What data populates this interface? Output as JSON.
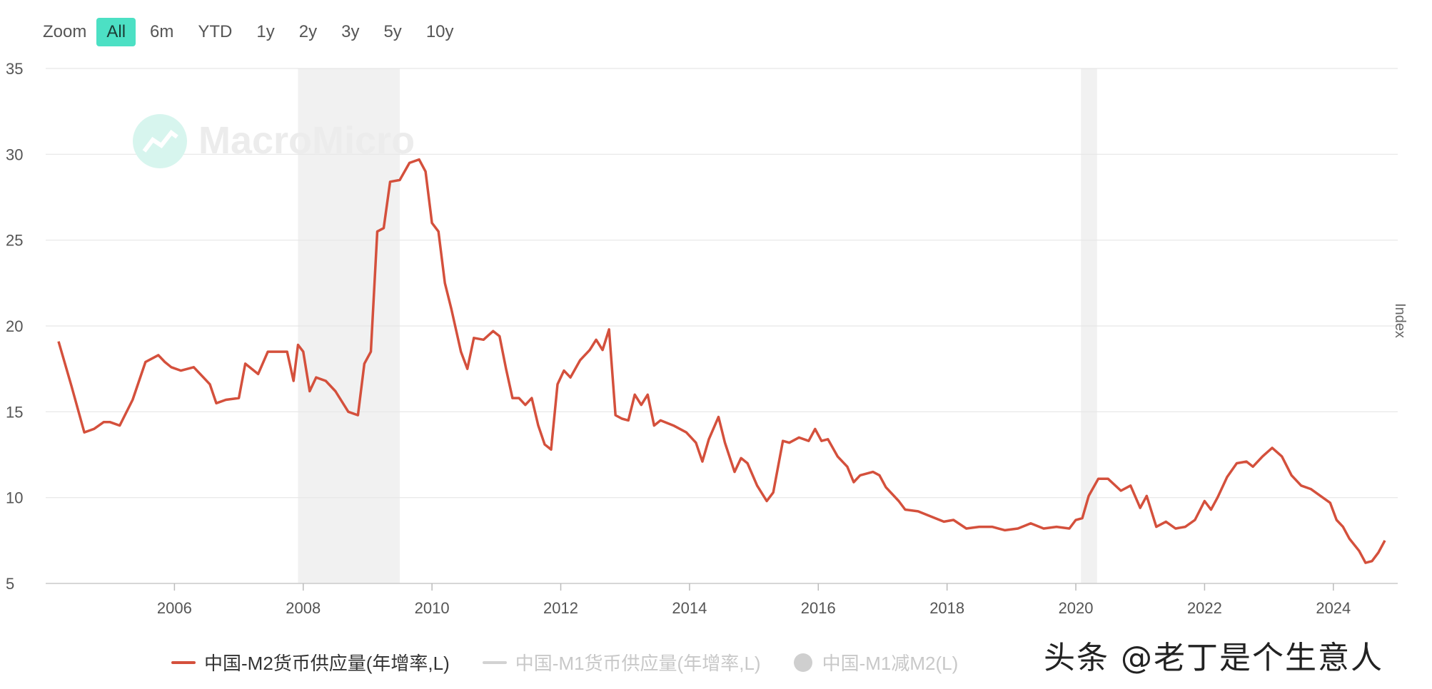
{
  "toolbar": {
    "zoom_label": "Zoom",
    "buttons": [
      "All",
      "6m",
      "YTD",
      "1y",
      "2y",
      "3y",
      "5y",
      "10y"
    ],
    "active": "All"
  },
  "watermark": "MacroMicro",
  "footer_watermark": "头条 @老丁是个生意人",
  "yaxis_title": "Index",
  "legend": {
    "m2": "中国-M2货币供应量(年增率,L)",
    "m1": "中国-M1货币供应量(年增率,L)",
    "m1m2": "中国-M1减M2(L)"
  },
  "colors": {
    "line": "#d4503c",
    "accent": "#4ce0c4",
    "shade": "#f1f1f1"
  },
  "chart_data": {
    "type": "line",
    "ylim": [
      5,
      35
    ],
    "xlim": [
      2004.0,
      2025.0
    ],
    "yticks": [
      5,
      10,
      15,
      20,
      25,
      30,
      35
    ],
    "xticks": [
      2006,
      2008,
      2010,
      2012,
      2014,
      2016,
      2018,
      2020,
      2022,
      2024
    ],
    "grid": true,
    "legend_position": "bottom",
    "shaded_periods": [
      [
        2007.92,
        2009.5
      ],
      [
        2020.08,
        2020.33
      ]
    ],
    "series": [
      {
        "name": "中国-M2货币供应量(年增率,L)",
        "x": [
          2004.2,
          2004.4,
          2004.6,
          2004.75,
          2004.9,
          2005.0,
          2005.15,
          2005.35,
          2005.55,
          2005.75,
          2005.85,
          2005.95,
          2006.1,
          2006.3,
          2006.45,
          2006.55,
          2006.65,
          2006.8,
          2007.0,
          2007.1,
          2007.3,
          2007.45,
          2007.6,
          2007.75,
          2007.85,
          2007.92,
          2008.0,
          2008.1,
          2008.2,
          2008.35,
          2008.5,
          2008.7,
          2008.85,
          2008.95,
          2009.05,
          2009.15,
          2009.25,
          2009.35,
          2009.5,
          2009.65,
          2009.8,
          2009.9,
          2010.0,
          2010.1,
          2010.2,
          2010.3,
          2010.45,
          2010.55,
          2010.65,
          2010.8,
          2010.95,
          2011.05,
          2011.15,
          2011.25,
          2011.35,
          2011.45,
          2011.55,
          2011.65,
          2011.75,
          2011.85,
          2011.95,
          2012.05,
          2012.15,
          2012.3,
          2012.45,
          2012.55,
          2012.65,
          2012.75,
          2012.85,
          2012.95,
          2013.05,
          2013.15,
          2013.25,
          2013.35,
          2013.45,
          2013.55,
          2013.75,
          2013.95,
          2014.1,
          2014.2,
          2014.3,
          2014.45,
          2014.55,
          2014.7,
          2014.8,
          2014.9,
          2015.05,
          2015.2,
          2015.3,
          2015.45,
          2015.55,
          2015.7,
          2015.85,
          2015.95,
          2016.05,
          2016.15,
          2016.3,
          2016.45,
          2016.55,
          2016.65,
          2016.85,
          2016.95,
          2017.05,
          2017.25,
          2017.35,
          2017.55,
          2017.75,
          2017.95,
          2018.1,
          2018.3,
          2018.5,
          2018.7,
          2018.9,
          2019.1,
          2019.3,
          2019.5,
          2019.7,
          2019.9,
          2020.0,
          2020.1,
          2020.2,
          2020.35,
          2020.5,
          2020.7,
          2020.85,
          2021.0,
          2021.1,
          2021.25,
          2021.4,
          2021.55,
          2021.7,
          2021.85,
          2022.0,
          2022.1,
          2022.2,
          2022.35,
          2022.5,
          2022.65,
          2022.75,
          2022.9,
          2023.05,
          2023.2,
          2023.35,
          2023.5,
          2023.65,
          2023.8,
          2023.95,
          2024.05,
          2024.15,
          2024.25,
          2024.4,
          2024.5,
          2024.6,
          2024.7,
          2024.8
        ],
        "values": [
          19.1,
          16.5,
          13.8,
          14.0,
          14.4,
          14.4,
          14.2,
          15.7,
          17.9,
          18.3,
          17.9,
          17.6,
          17.4,
          17.6,
          17.0,
          16.6,
          15.5,
          15.7,
          15.8,
          17.8,
          17.2,
          18.5,
          18.5,
          18.5,
          16.8,
          18.9,
          18.5,
          16.2,
          17.0,
          16.8,
          16.2,
          15.0,
          14.8,
          17.8,
          18.5,
          25.5,
          25.7,
          28.4,
          28.5,
          29.5,
          29.7,
          29.0,
          26.0,
          25.5,
          22.5,
          21.0,
          18.5,
          17.5,
          19.3,
          19.2,
          19.7,
          19.4,
          17.5,
          15.8,
          15.8,
          15.4,
          15.8,
          14.2,
          13.1,
          12.8,
          16.6,
          17.4,
          17.0,
          18.0,
          18.6,
          19.2,
          18.6,
          19.8,
          14.8,
          14.6,
          14.5,
          16.0,
          15.4,
          16.0,
          14.2,
          14.5,
          14.2,
          13.8,
          13.2,
          12.1,
          13.4,
          14.7,
          13.2,
          11.5,
          12.3,
          12.0,
          10.7,
          9.8,
          10.3,
          13.3,
          13.2,
          13.5,
          13.3,
          14.0,
          13.3,
          13.4,
          12.4,
          11.8,
          10.9,
          11.3,
          11.5,
          11.3,
          10.6,
          9.8,
          9.3,
          9.2,
          8.9,
          8.6,
          8.7,
          8.2,
          8.3,
          8.3,
          8.1,
          8.2,
          8.5,
          8.2,
          8.3,
          8.2,
          8.7,
          8.8,
          10.1,
          11.1,
          11.1,
          10.4,
          10.7,
          9.4,
          10.1,
          8.3,
          8.6,
          8.2,
          8.3,
          8.7,
          9.8,
          9.3,
          10.0,
          11.2,
          12.0,
          12.1,
          11.8,
          12.4,
          12.9,
          12.4,
          11.3,
          10.7,
          10.5,
          10.1,
          9.7,
          8.7,
          8.3,
          7.6,
          6.9,
          6.2,
          6.3,
          6.8,
          7.5
        ]
      }
    ]
  }
}
